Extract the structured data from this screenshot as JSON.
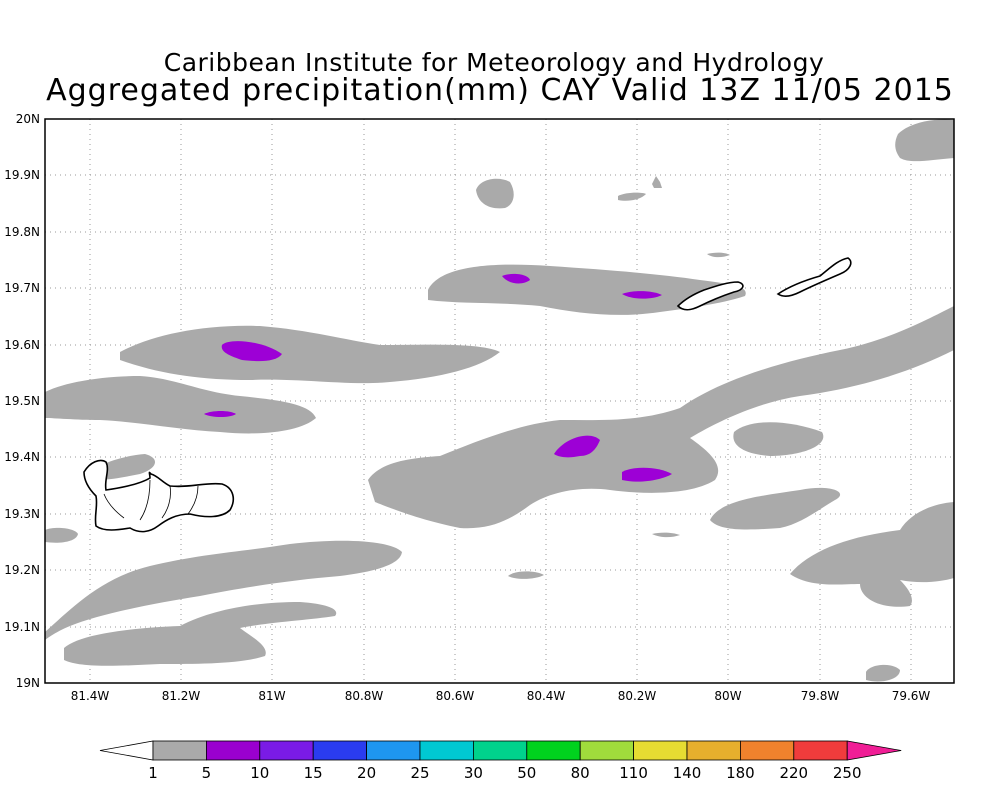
{
  "header": {
    "title_line1": "Caribbean Institute for Meteorology and Hydrology",
    "title_line2": "Aggregated precipitation(mm) CAY Valid 13Z 11/05 2015"
  },
  "map": {
    "lat_labels": [
      "20N",
      "19.9N",
      "19.8N",
      "19.7N",
      "19.6N",
      "19.5N",
      "19.4N",
      "19.3N",
      "19.2N",
      "19.1N",
      "19N"
    ],
    "lon_labels": [
      "81.4W",
      "81.2W",
      "81W",
      "80.8W",
      "80.6W",
      "80.4W",
      "80.2W",
      "80W",
      "79.8W",
      "79.6W"
    ],
    "precip_colors": {
      "light": "#aaaaaa",
      "moderate": "#9d00d6"
    }
  },
  "colorbar": {
    "labels": [
      "1",
      "5",
      "10",
      "15",
      "20",
      "25",
      "30",
      "50",
      "80",
      "110",
      "140",
      "180",
      "220",
      "250"
    ],
    "colors": [
      "#aaaaaa",
      "#9a00cf",
      "#7a1be6",
      "#2a3cf0",
      "#1e96f0",
      "#00c8d2",
      "#00d28c",
      "#00d21e",
      "#a0dc3c",
      "#e6dc32",
      "#e6af2d",
      "#f0822d",
      "#f03c3c",
      "#f01e96"
    ],
    "low_cap_color": "#ffffff",
    "high_cap_color": "#f01e96"
  }
}
